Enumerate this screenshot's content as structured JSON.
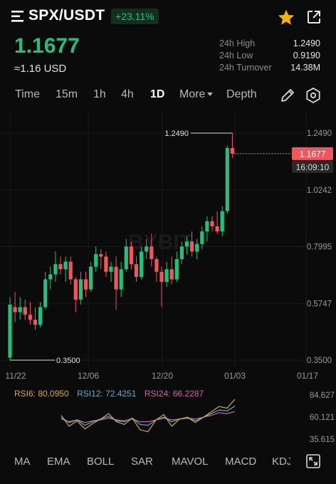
{
  "header": {
    "pair": "SPX/USDT",
    "change_pct": "+23.11%",
    "price": "1.1677",
    "fiat_price": "≈1.16 USD",
    "stats": [
      {
        "label": "24h High",
        "value": "1.2490"
      },
      {
        "label": "24h Low",
        "value": "0.9190"
      },
      {
        "label": "24h Turnover",
        "value": "14.38M"
      }
    ]
  },
  "timeframes": {
    "items": [
      "Time",
      "15m",
      "1h",
      "4h",
      "1D",
      "More",
      "Depth"
    ],
    "active": "1D"
  },
  "chart": {
    "watermark": "BYBIT",
    "current_price_label": "1.1677",
    "countdown": "16:09:10",
    "high_annotation": "1.2490",
    "low_annotation": "0.3500"
  },
  "chart_data": {
    "type": "candlestick",
    "y_ticks": [
      "1.2490",
      "1.0242",
      "0.7995",
      "0.5747",
      "0.3500"
    ],
    "x_ticks": [
      "11/22",
      "12/06",
      "12/20",
      "01/03",
      "01/17"
    ],
    "ylim": [
      0.35,
      1.249
    ],
    "candles": [
      {
        "date": "11/22",
        "o": 0.36,
        "h": 0.6,
        "l": 0.35,
        "c": 0.57
      },
      {
        "date": "11/23",
        "o": 0.56,
        "h": 0.62,
        "l": 0.5,
        "c": 0.54
      },
      {
        "date": "11/24",
        "o": 0.54,
        "h": 0.6,
        "l": 0.51,
        "c": 0.56
      },
      {
        "date": "11/25",
        "o": 0.56,
        "h": 0.59,
        "l": 0.51,
        "c": 0.53
      },
      {
        "date": "11/26",
        "o": 0.53,
        "h": 0.58,
        "l": 0.49,
        "c": 0.51
      },
      {
        "date": "11/27",
        "o": 0.51,
        "h": 0.56,
        "l": 0.47,
        "c": 0.49
      },
      {
        "date": "11/28",
        "o": 0.49,
        "h": 0.58,
        "l": 0.48,
        "c": 0.56
      },
      {
        "date": "11/29",
        "o": 0.56,
        "h": 0.7,
        "l": 0.55,
        "c": 0.67
      },
      {
        "date": "11/30",
        "o": 0.67,
        "h": 0.72,
        "l": 0.63,
        "c": 0.69
      },
      {
        "date": "12/01",
        "o": 0.69,
        "h": 0.78,
        "l": 0.66,
        "c": 0.73
      },
      {
        "date": "12/02",
        "o": 0.73,
        "h": 0.76,
        "l": 0.69,
        "c": 0.71
      },
      {
        "date": "12/03",
        "o": 0.71,
        "h": 0.76,
        "l": 0.66,
        "c": 0.74
      },
      {
        "date": "12/04",
        "o": 0.74,
        "h": 0.76,
        "l": 0.65,
        "c": 0.67
      },
      {
        "date": "12/05",
        "o": 0.67,
        "h": 0.68,
        "l": 0.54,
        "c": 0.59
      },
      {
        "date": "12/06",
        "o": 0.59,
        "h": 0.7,
        "l": 0.57,
        "c": 0.67
      },
      {
        "date": "12/07",
        "o": 0.67,
        "h": 0.7,
        "l": 0.6,
        "c": 0.63
      },
      {
        "date": "12/08",
        "o": 0.63,
        "h": 0.74,
        "l": 0.62,
        "c": 0.72
      },
      {
        "date": "12/09",
        "o": 0.72,
        "h": 0.8,
        "l": 0.7,
        "c": 0.77
      },
      {
        "date": "12/10",
        "o": 0.77,
        "h": 0.79,
        "l": 0.71,
        "c": 0.76
      },
      {
        "date": "12/11",
        "o": 0.76,
        "h": 0.78,
        "l": 0.68,
        "c": 0.7
      },
      {
        "date": "12/12",
        "o": 0.7,
        "h": 0.74,
        "l": 0.66,
        "c": 0.72
      },
      {
        "date": "12/13",
        "o": 0.72,
        "h": 0.76,
        "l": 0.55,
        "c": 0.63
      },
      {
        "date": "12/14",
        "o": 0.63,
        "h": 0.74,
        "l": 0.6,
        "c": 0.71
      },
      {
        "date": "12/15",
        "o": 0.71,
        "h": 0.83,
        "l": 0.7,
        "c": 0.8
      },
      {
        "date": "12/16",
        "o": 0.8,
        "h": 0.82,
        "l": 0.71,
        "c": 0.73
      },
      {
        "date": "12/17",
        "o": 0.73,
        "h": 0.76,
        "l": 0.66,
        "c": 0.68
      },
      {
        "date": "12/18",
        "o": 0.68,
        "h": 0.8,
        "l": 0.67,
        "c": 0.78
      },
      {
        "date": "12/19",
        "o": 0.78,
        "h": 0.83,
        "l": 0.75,
        "c": 0.8
      },
      {
        "date": "12/20",
        "o": 0.8,
        "h": 0.85,
        "l": 0.72,
        "c": 0.75
      },
      {
        "date": "12/21",
        "o": 0.75,
        "h": 0.76,
        "l": 0.66,
        "c": 0.7
      },
      {
        "date": "12/22",
        "o": 0.7,
        "h": 0.72,
        "l": 0.56,
        "c": 0.66
      },
      {
        "date": "12/23",
        "o": 0.66,
        "h": 0.74,
        "l": 0.64,
        "c": 0.71
      },
      {
        "date": "12/24",
        "o": 0.71,
        "h": 0.76,
        "l": 0.65,
        "c": 0.67
      },
      {
        "date": "12/25",
        "o": 0.67,
        "h": 0.78,
        "l": 0.66,
        "c": 0.75
      },
      {
        "date": "12/26",
        "o": 0.75,
        "h": 0.82,
        "l": 0.73,
        "c": 0.8
      },
      {
        "date": "12/27",
        "o": 0.8,
        "h": 0.84,
        "l": 0.77,
        "c": 0.82
      },
      {
        "date": "12/28",
        "o": 0.82,
        "h": 0.86,
        "l": 0.76,
        "c": 0.78
      },
      {
        "date": "12/29",
        "o": 0.78,
        "h": 0.83,
        "l": 0.75,
        "c": 0.81
      },
      {
        "date": "12/30",
        "o": 0.81,
        "h": 0.88,
        "l": 0.79,
        "c": 0.86
      },
      {
        "date": "12/31",
        "o": 0.86,
        "h": 0.92,
        "l": 0.82,
        "c": 0.9
      },
      {
        "date": "01/01",
        "o": 0.9,
        "h": 0.92,
        "l": 0.86,
        "c": 0.88
      },
      {
        "date": "01/02",
        "o": 0.88,
        "h": 0.94,
        "l": 0.85,
        "c": 0.86
      },
      {
        "date": "01/03",
        "o": 0.86,
        "h": 0.96,
        "l": 0.84,
        "c": 0.94
      },
      {
        "date": "01/04",
        "o": 0.94,
        "h": 1.2,
        "l": 0.93,
        "c": 1.19
      },
      {
        "date": "01/05",
        "o": 1.19,
        "h": 1.249,
        "l": 1.15,
        "c": 1.1677
      }
    ]
  },
  "rsi": {
    "rsi6_label": "RSI6: 80.0950",
    "rsi12_label": "RSI12: 72.4251",
    "rsi24_label": "RSI24: 66.2287",
    "y_ticks": [
      "84.627",
      "60.121",
      "35.615"
    ],
    "ylim": [
      35.615,
      84.627
    ],
    "rsi6": [
      62,
      50,
      56,
      47,
      53,
      58,
      64,
      55,
      52,
      59,
      46,
      44,
      57,
      63,
      50,
      58,
      60,
      54,
      60,
      66,
      72,
      70,
      80
    ],
    "rsi12": [
      60,
      54,
      57,
      51,
      55,
      58,
      61,
      56,
      55,
      59,
      52,
      51,
      57,
      60,
      55,
      58,
      59,
      56,
      60,
      64,
      68,
      67,
      72.4
    ],
    "rsi24": [
      58,
      55,
      57,
      54,
      56,
      57,
      59,
      57,
      56,
      58,
      55,
      55,
      57,
      59,
      57,
      58,
      59,
      58,
      60,
      62,
      65,
      64,
      66.2
    ],
    "colors": {
      "rsi6": "#d7a744",
      "rsi12": "#6aa8c8",
      "rsi24": "#c96aa8"
    }
  },
  "indicators": [
    "MA",
    "EMA",
    "BOLL",
    "SAR",
    "MAVOL",
    "MACD",
    "KDJ"
  ],
  "colors": {
    "up": "#22c07c",
    "down": "#f0565c",
    "accent": "#f7b500"
  }
}
